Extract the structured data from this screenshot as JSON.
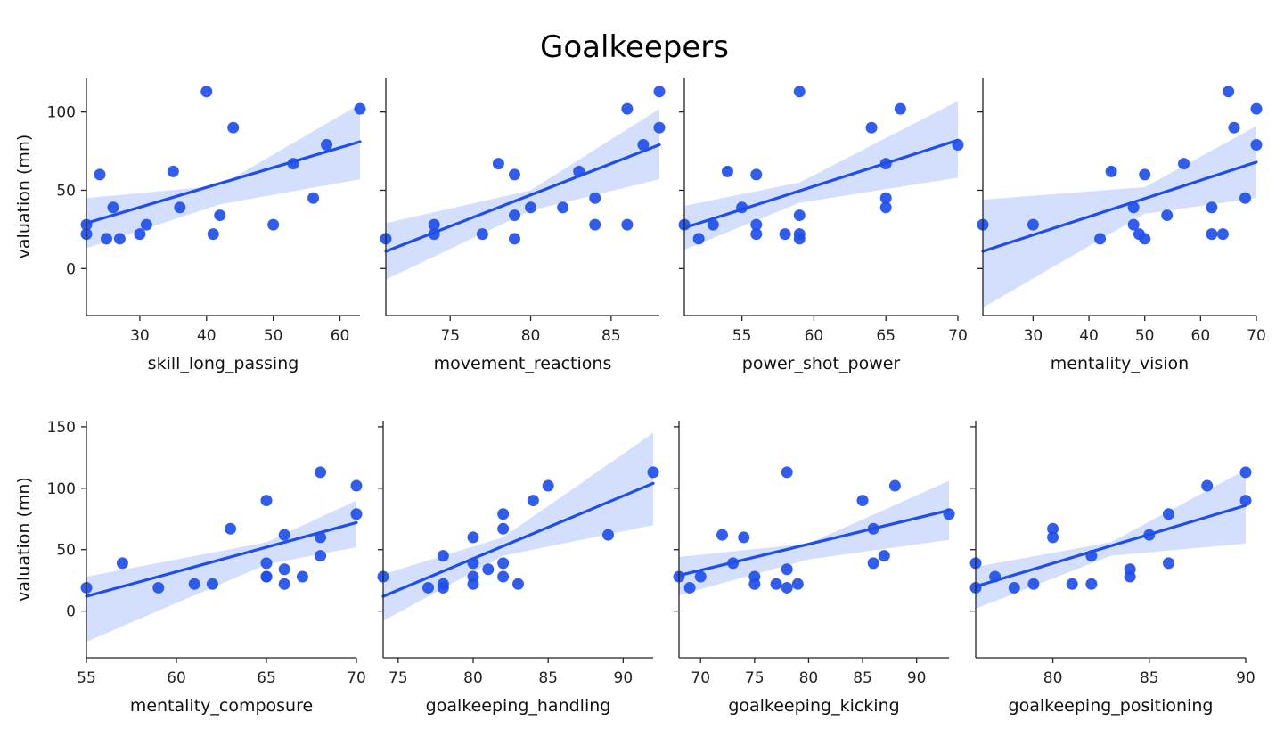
{
  "chart_data": {
    "type": "scatter",
    "title": "Goalkeepers",
    "regression": true,
    "confidence_band": true,
    "colors": {
      "points": "#1f4fe8",
      "line": "#1f4fe8",
      "band": "#cfdcfd"
    },
    "panels": [
      {
        "xlabel": "skill_long_passing",
        "ylabel": "valuation (mn)",
        "xlim": [
          22,
          63
        ],
        "ylim": [
          -30,
          122
        ],
        "xticks": [
          30,
          40,
          50,
          60
        ],
        "yticks": [
          0,
          50,
          100
        ],
        "points": [
          [
            22,
            22
          ],
          [
            22,
            28
          ],
          [
            24,
            60
          ],
          [
            25,
            19
          ],
          [
            26,
            39
          ],
          [
            27,
            19
          ],
          [
            30,
            22
          ],
          [
            31,
            28
          ],
          [
            35,
            62
          ],
          [
            36,
            39
          ],
          [
            40,
            113
          ],
          [
            41,
            22
          ],
          [
            42,
            34
          ],
          [
            44,
            90
          ],
          [
            50,
            28
          ],
          [
            53,
            67
          ],
          [
            56,
            45
          ],
          [
            58,
            79
          ],
          [
            63,
            102
          ]
        ],
        "fit": {
          "x": [
            22,
            63
          ],
          "y": [
            29,
            81
          ]
        },
        "band": {
          "x": [
            22,
            42,
            63
          ],
          "lower": [
            13,
            41,
            57
          ],
          "upper": [
            45,
            53,
            105
          ]
        }
      },
      {
        "xlabel": "movement_reactions",
        "ylabel": "",
        "xlim": [
          71,
          88
        ],
        "ylim": [
          -30,
          122
        ],
        "xticks": [
          75,
          80,
          85
        ],
        "yticks": [
          0,
          50,
          100
        ],
        "points": [
          [
            71,
            19
          ],
          [
            74,
            28
          ],
          [
            74,
            22
          ],
          [
            77,
            22
          ],
          [
            78,
            67
          ],
          [
            79,
            60
          ],
          [
            79,
            34
          ],
          [
            79,
            19
          ],
          [
            80,
            39
          ],
          [
            82,
            39
          ],
          [
            83,
            62
          ],
          [
            84,
            45
          ],
          [
            84,
            28
          ],
          [
            86,
            102
          ],
          [
            86,
            28
          ],
          [
            87,
            79
          ],
          [
            88,
            113
          ],
          [
            88,
            90
          ]
        ],
        "fit": {
          "x": [
            71,
            88
          ],
          "y": [
            11,
            79
          ]
        },
        "band": {
          "x": [
            71,
            80,
            88
          ],
          "lower": [
            -7,
            37,
            57
          ],
          "upper": [
            29,
            50,
            102
          ]
        }
      },
      {
        "xlabel": "power_shot_power",
        "ylabel": "",
        "xlim": [
          51,
          70
        ],
        "ylim": [
          -30,
          122
        ],
        "xticks": [
          55,
          60,
          65,
          70
        ],
        "yticks": [
          0,
          50,
          100
        ],
        "points": [
          [
            51,
            28
          ],
          [
            52,
            19
          ],
          [
            53,
            28
          ],
          [
            54,
            62
          ],
          [
            55,
            39
          ],
          [
            56,
            60
          ],
          [
            56,
            28
          ],
          [
            56,
            22
          ],
          [
            58,
            22
          ],
          [
            59,
            113
          ],
          [
            59,
            34
          ],
          [
            59,
            22
          ],
          [
            59,
            19
          ],
          [
            64,
            90
          ],
          [
            65,
            67
          ],
          [
            65,
            45
          ],
          [
            65,
            39
          ],
          [
            66,
            102
          ],
          [
            70,
            79
          ]
        ],
        "fit": {
          "x": [
            51,
            70
          ],
          "y": [
            26,
            82
          ]
        },
        "band": {
          "x": [
            51,
            59,
            70
          ],
          "lower": [
            12,
            42,
            58
          ],
          "upper": [
            40,
            55,
            107
          ]
        }
      },
      {
        "xlabel": "mentality_vision",
        "ylabel": "",
        "xlim": [
          21,
          70
        ],
        "ylim": [
          -30,
          122
        ],
        "xticks": [
          30,
          40,
          50,
          60,
          70
        ],
        "yticks": [
          0,
          50,
          100
        ],
        "points": [
          [
            21,
            28
          ],
          [
            30,
            28
          ],
          [
            42,
            19
          ],
          [
            44,
            62
          ],
          [
            48,
            39
          ],
          [
            48,
            28
          ],
          [
            49,
            22
          ],
          [
            50,
            60
          ],
          [
            50,
            19
          ],
          [
            54,
            34
          ],
          [
            57,
            67
          ],
          [
            62,
            39
          ],
          [
            62,
            22
          ],
          [
            64,
            22
          ],
          [
            65,
            113
          ],
          [
            66,
            90
          ],
          [
            68,
            45
          ],
          [
            70,
            102
          ],
          [
            70,
            79
          ]
        ],
        "fit": {
          "x": [
            21,
            70
          ],
          "y": [
            11,
            68
          ]
        },
        "band": {
          "x": [
            21,
            50,
            70
          ],
          "lower": [
            -25,
            35,
            45
          ],
          "upper": [
            44,
            52,
            91
          ]
        }
      },
      {
        "xlabel": "mentality_composure",
        "ylabel": "valuation (mn)",
        "xlim": [
          55,
          70
        ],
        "ylim": [
          -38,
          155
        ],
        "xticks": [
          55,
          60,
          65,
          70
        ],
        "yticks": [
          0,
          50,
          100,
          150
        ],
        "points": [
          [
            55,
            19
          ],
          [
            57,
            39
          ],
          [
            59,
            19
          ],
          [
            61,
            22
          ],
          [
            62,
            22
          ],
          [
            63,
            67
          ],
          [
            65,
            90
          ],
          [
            65,
            39
          ],
          [
            65,
            28
          ],
          [
            65,
            28
          ],
          [
            66,
            62
          ],
          [
            66,
            34
          ],
          [
            66,
            22
          ],
          [
            67,
            28
          ],
          [
            68,
            113
          ],
          [
            68,
            60
          ],
          [
            68,
            45
          ],
          [
            70,
            102
          ],
          [
            70,
            79
          ]
        ],
        "fit": {
          "x": [
            55,
            70
          ],
          "y": [
            12,
            72
          ]
        },
        "band": {
          "x": [
            55,
            65,
            70
          ],
          "lower": [
            -25,
            38,
            52
          ],
          "upper": [
            28,
            56,
            90
          ]
        }
      },
      {
        "xlabel": "goalkeeping_handling",
        "ylabel": "",
        "xlim": [
          74,
          92
        ],
        "ylim": [
          -38,
          155
        ],
        "xticks": [
          75,
          80,
          85,
          90
        ],
        "yticks": [
          0,
          50,
          100,
          150
        ],
        "points": [
          [
            74,
            28
          ],
          [
            77,
            19
          ],
          [
            78,
            45
          ],
          [
            78,
            22
          ],
          [
            78,
            19
          ],
          [
            80,
            60
          ],
          [
            80,
            39
          ],
          [
            80,
            28
          ],
          [
            80,
            22
          ],
          [
            81,
            34
          ],
          [
            82,
            79
          ],
          [
            82,
            67
          ],
          [
            82,
            39
          ],
          [
            82,
            28
          ],
          [
            83,
            22
          ],
          [
            84,
            90
          ],
          [
            85,
            102
          ],
          [
            89,
            62
          ],
          [
            92,
            113
          ]
        ],
        "fit": {
          "x": [
            74,
            92
          ],
          "y": [
            12,
            104
          ]
        },
        "band": {
          "x": [
            74,
            82,
            92
          ],
          "lower": [
            -8,
            45,
            70
          ],
          "upper": [
            30,
            60,
            145
          ]
        }
      },
      {
        "xlabel": "goalkeeping_kicking",
        "ylabel": "",
        "xlim": [
          68,
          93
        ],
        "ylim": [
          -38,
          155
        ],
        "xticks": [
          70,
          75,
          80,
          85,
          90
        ],
        "yticks": [
          0,
          50,
          100,
          150
        ],
        "points": [
          [
            68,
            28
          ],
          [
            69,
            19
          ],
          [
            70,
            28
          ],
          [
            72,
            62
          ],
          [
            73,
            39
          ],
          [
            74,
            60
          ],
          [
            75,
            28
          ],
          [
            75,
            22
          ],
          [
            77,
            22
          ],
          [
            78,
            113
          ],
          [
            78,
            34
          ],
          [
            78,
            19
          ],
          [
            79,
            22
          ],
          [
            85,
            90
          ],
          [
            86,
            67
          ],
          [
            86,
            39
          ],
          [
            87,
            45
          ],
          [
            88,
            102
          ],
          [
            93,
            79
          ]
        ],
        "fit": {
          "x": [
            68,
            93
          ],
          "y": [
            29,
            82
          ]
        },
        "band": {
          "x": [
            68,
            80,
            93
          ],
          "lower": [
            13,
            42,
            58
          ],
          "upper": [
            44,
            55,
            106
          ]
        }
      },
      {
        "xlabel": "goalkeeping_positioning",
        "ylabel": "",
        "xlim": [
          76,
          90
        ],
        "ylim": [
          -38,
          155
        ],
        "xticks": [
          80,
          85,
          90
        ],
        "yticks": [
          0,
          50,
          100,
          150
        ],
        "points": [
          [
            76,
            39
          ],
          [
            76,
            19
          ],
          [
            77,
            28
          ],
          [
            78,
            19
          ],
          [
            79,
            22
          ],
          [
            80,
            67
          ],
          [
            80,
            60
          ],
          [
            81,
            22
          ],
          [
            82,
            45
          ],
          [
            82,
            22
          ],
          [
            84,
            34
          ],
          [
            84,
            28
          ],
          [
            85,
            62
          ],
          [
            86,
            79
          ],
          [
            86,
            39
          ],
          [
            88,
            102
          ],
          [
            90,
            113
          ],
          [
            90,
            90
          ]
        ],
        "fit": {
          "x": [
            76,
            90
          ],
          "y": [
            20,
            86
          ]
        },
        "band": {
          "x": [
            76,
            83,
            90
          ],
          "lower": [
            2,
            45,
            55
          ],
          "upper": [
            36,
            56,
            115
          ]
        }
      }
    ]
  }
}
